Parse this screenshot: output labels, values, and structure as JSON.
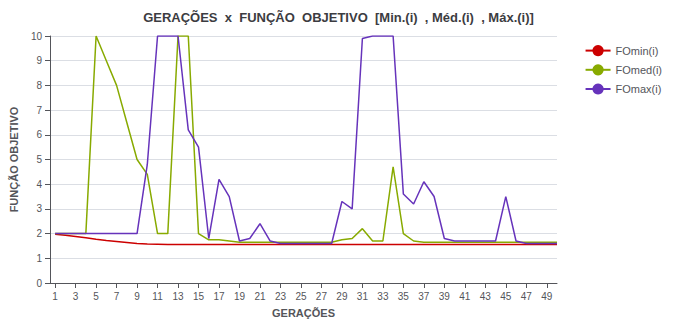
{
  "chart_data": {
    "type": "line",
    "title": "GERAÇÕES  x  FUNÇÃO  OBJETIVO  [Min.(i)  , Méd.(i)  , Máx.(i)]",
    "xlabel": "GERAÇÕES",
    "ylabel": "FUNÇÃO OBJETIVO",
    "x": [
      1,
      2,
      3,
      4,
      5,
      6,
      7,
      8,
      9,
      10,
      11,
      12,
      13,
      14,
      15,
      16,
      17,
      18,
      19,
      20,
      21,
      22,
      23,
      24,
      25,
      26,
      27,
      28,
      29,
      30,
      31,
      32,
      33,
      34,
      35,
      36,
      37,
      38,
      39,
      40,
      41,
      42,
      43,
      44,
      45,
      46,
      47,
      48,
      49,
      50
    ],
    "series": [
      {
        "name": "FOmin(i)",
        "color": "#cc0000",
        "values": [
          1.97,
          1.93,
          1.88,
          1.83,
          1.77,
          1.72,
          1.68,
          1.64,
          1.6,
          1.58,
          1.57,
          1.56,
          1.56,
          1.56,
          1.56,
          1.56,
          1.56,
          1.56,
          1.56,
          1.56,
          1.56,
          1.56,
          1.56,
          1.56,
          1.56,
          1.56,
          1.56,
          1.56,
          1.56,
          1.56,
          1.56,
          1.56,
          1.56,
          1.56,
          1.56,
          1.56,
          1.56,
          1.56,
          1.56,
          1.56,
          1.56,
          1.56,
          1.56,
          1.56,
          1.56,
          1.56,
          1.56,
          1.56,
          1.56,
          1.56
        ]
      },
      {
        "name": "FOmed(i)",
        "color": "#88aa00",
        "values": [
          2.0,
          2.0,
          2.0,
          2.0,
          10.0,
          9.0,
          8.0,
          6.5,
          5.0,
          4.4,
          2.0,
          2.0,
          10.0,
          10.0,
          2.0,
          1.75,
          1.75,
          1.7,
          1.65,
          1.65,
          1.65,
          1.65,
          1.65,
          1.65,
          1.65,
          1.65,
          1.65,
          1.65,
          1.75,
          1.8,
          2.2,
          1.7,
          1.7,
          4.7,
          2.0,
          1.7,
          1.65,
          1.65,
          1.65,
          1.65,
          1.65,
          1.65,
          1.65,
          1.65,
          1.65,
          1.65,
          1.65,
          1.65,
          1.65,
          1.65
        ]
      },
      {
        "name": "FOmax(i)",
        "color": "#6633bb",
        "values": [
          2.0,
          2.0,
          2.0,
          2.0,
          2.0,
          2.0,
          2.0,
          2.0,
          2.0,
          4.8,
          10.0,
          10.0,
          10.0,
          6.2,
          5.5,
          1.8,
          4.2,
          3.5,
          1.7,
          1.8,
          2.4,
          1.7,
          1.6,
          1.6,
          1.6,
          1.6,
          1.6,
          1.6,
          3.3,
          3.0,
          9.9,
          10.0,
          10.0,
          10.0,
          3.6,
          3.2,
          4.1,
          3.5,
          1.8,
          1.7,
          1.7,
          1.7,
          1.7,
          1.7,
          3.5,
          1.7,
          1.6,
          1.6,
          1.6,
          1.6
        ]
      }
    ],
    "xlim": [
      0.5,
      50.0
    ],
    "ylim": [
      0,
      10
    ],
    "xticks": [
      1,
      3,
      5,
      7,
      9,
      11,
      13,
      15,
      17,
      19,
      21,
      23,
      25,
      27,
      29,
      31,
      33,
      35,
      37,
      39,
      41,
      43,
      45,
      47,
      49
    ],
    "yticks": [
      0,
      1,
      2,
      3,
      4,
      5,
      6,
      7,
      8,
      9,
      10
    ],
    "grid": "y",
    "legend": "right"
  }
}
